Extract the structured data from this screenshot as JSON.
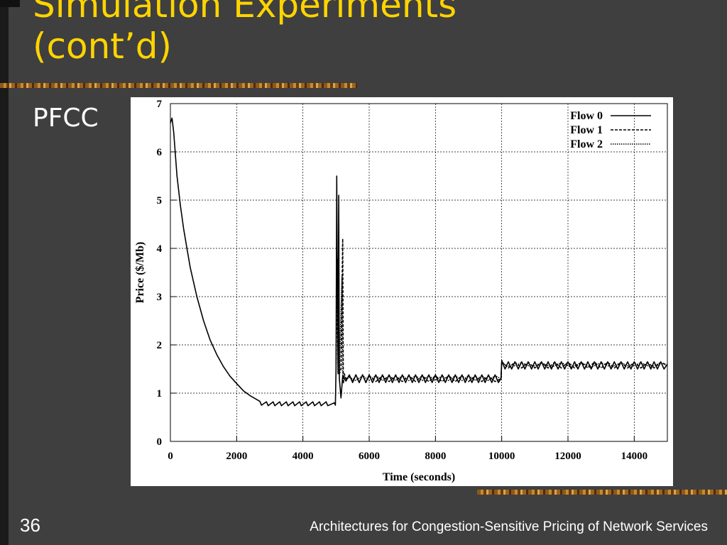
{
  "slide": {
    "title_line1": "Simulation Experiments",
    "title_line2": "(cont’d)",
    "subtitle": "PFCC",
    "slide_number": "36",
    "footer": "Architectures for Congestion-Sensitive Pricing of Network Services"
  },
  "colors": {
    "background": "#3f3f3f",
    "title": "#ffd400",
    "text": "#ffffff"
  },
  "chart_data": {
    "type": "line",
    "xlabel": "Time (seconds)",
    "ylabel": "Price ($/Mb)",
    "xlim": [
      0,
      15000
    ],
    "ylim": [
      0,
      7
    ],
    "xticks": [
      0,
      2000,
      4000,
      6000,
      8000,
      10000,
      12000,
      14000
    ],
    "yticks": [
      0,
      1,
      2,
      3,
      4,
      5,
      6,
      7
    ],
    "grid": true,
    "legend_position": "top-right",
    "series": [
      {
        "name": "Flow 0",
        "dash": "solid",
        "x": [
          0,
          50,
          100,
          200,
          300,
          400,
          500,
          600,
          800,
          1000,
          1200,
          1400,
          1600,
          1800,
          2000,
          2200,
          2400,
          2600,
          2700,
          2750,
          2900,
          2950,
          3100,
          3150,
          3300,
          3350,
          3500,
          3550,
          3700,
          3750,
          3900,
          3950,
          4100,
          4150,
          4300,
          4350,
          4500,
          4550,
          4700,
          4750,
          4950,
          4980,
          5000,
          5020,
          5040,
          5060,
          5080,
          5100,
          5150,
          5200,
          5300,
          5400,
          5500,
          5600,
          5700,
          5800,
          5900,
          6000,
          6100,
          6200,
          6300,
          6400,
          6500,
          6600,
          6700,
          6800,
          6900,
          7000,
          7100,
          7200,
          7300,
          7400,
          7500,
          7600,
          7700,
          7800,
          7900,
          8000,
          8100,
          8200,
          8300,
          8400,
          8500,
          8600,
          8700,
          8800,
          8900,
          9000,
          9100,
          9200,
          9300,
          9400,
          9500,
          9600,
          9700,
          9800,
          9900,
          9980,
          10000,
          10100,
          10200,
          10300,
          10400,
          10500,
          10600,
          10700,
          10800,
          10900,
          11000,
          11100,
          11200,
          11300,
          11400,
          11500,
          11600,
          11700,
          11800,
          11900,
          12000,
          12100,
          12200,
          12300,
          12400,
          12500,
          12600,
          12700,
          12800,
          12900,
          13000,
          13100,
          13200,
          13300,
          13400,
          13500,
          13600,
          13700,
          13800,
          13900,
          14000,
          14100,
          14200,
          14300,
          14400,
          14500,
          14600,
          14700,
          14800,
          14900,
          15000
        ],
        "y": [
          6.6,
          6.7,
          6.4,
          5.5,
          4.9,
          4.4,
          4.0,
          3.6,
          3.0,
          2.5,
          2.1,
          1.8,
          1.55,
          1.35,
          1.2,
          1.05,
          0.95,
          0.87,
          0.83,
          0.75,
          0.82,
          0.74,
          0.82,
          0.74,
          0.82,
          0.74,
          0.82,
          0.74,
          0.82,
          0.74,
          0.82,
          0.74,
          0.82,
          0.74,
          0.82,
          0.74,
          0.82,
          0.74,
          0.82,
          0.74,
          0.8,
          0.75,
          1.5,
          5.5,
          3.2,
          1.4,
          5.1,
          1.3,
          0.9,
          1.35,
          1.25,
          1.38,
          1.22,
          1.38,
          1.22,
          1.38,
          1.22,
          1.38,
          1.22,
          1.38,
          1.22,
          1.38,
          1.22,
          1.38,
          1.22,
          1.38,
          1.22,
          1.38,
          1.22,
          1.38,
          1.22,
          1.38,
          1.22,
          1.38,
          1.22,
          1.38,
          1.22,
          1.38,
          1.22,
          1.38,
          1.22,
          1.38,
          1.22,
          1.38,
          1.22,
          1.38,
          1.22,
          1.38,
          1.22,
          1.38,
          1.22,
          1.38,
          1.22,
          1.38,
          1.22,
          1.38,
          1.22,
          1.3,
          1.68,
          1.5,
          1.65,
          1.5,
          1.65,
          1.5,
          1.65,
          1.5,
          1.65,
          1.5,
          1.65,
          1.5,
          1.65,
          1.5,
          1.65,
          1.5,
          1.65,
          1.5,
          1.65,
          1.5,
          1.65,
          1.5,
          1.65,
          1.5,
          1.65,
          1.5,
          1.65,
          1.5,
          1.65,
          1.5,
          1.65,
          1.5,
          1.65,
          1.5,
          1.65,
          1.5,
          1.65,
          1.5,
          1.65,
          1.5,
          1.65,
          1.5,
          1.65,
          1.5,
          1.65,
          1.5,
          1.65,
          1.5,
          1.65,
          1.5,
          1.6
        ]
      },
      {
        "name": "Flow 1",
        "dash": "dashed",
        "x": [
          5000,
          5050,
          5100,
          5150,
          5200,
          5220,
          5250,
          5300,
          5400,
          5500,
          5600,
          5700,
          5800,
          5900,
          6000,
          6200,
          6400,
          6600,
          6800,
          7000,
          7200,
          7400,
          7600,
          7800,
          8000,
          8200,
          8400,
          8600,
          8800,
          9000,
          9200,
          9400,
          9600,
          9800,
          9980,
          10000,
          10200,
          10400,
          10600,
          10800,
          11000,
          11200,
          11400,
          11600,
          11800,
          12000,
          12200,
          12400,
          12600,
          12800,
          13000,
          13200,
          13400,
          13600,
          13800,
          14000,
          14200,
          14400,
          14600,
          14800,
          15000
        ],
        "y": [
          1.6,
          3.8,
          1.4,
          1.5,
          4.2,
          1.2,
          1.4,
          1.3,
          1.35,
          1.25,
          1.38,
          1.22,
          1.38,
          1.22,
          1.36,
          1.24,
          1.36,
          1.24,
          1.36,
          1.24,
          1.36,
          1.24,
          1.36,
          1.24,
          1.36,
          1.24,
          1.36,
          1.24,
          1.36,
          1.24,
          1.36,
          1.24,
          1.36,
          1.24,
          1.3,
          1.65,
          1.52,
          1.64,
          1.52,
          1.64,
          1.52,
          1.64,
          1.52,
          1.64,
          1.52,
          1.64,
          1.52,
          1.64,
          1.52,
          1.64,
          1.52,
          1.64,
          1.52,
          1.64,
          1.52,
          1.64,
          1.52,
          1.64,
          1.52,
          1.64,
          1.58
        ]
      },
      {
        "name": "Flow 2",
        "dash": "dotted",
        "x": [
          5100,
          5150,
          5180,
          5200,
          5250,
          5300,
          5400,
          5600,
          5800,
          6000,
          6200,
          6400,
          6600,
          6800,
          7000,
          7200,
          7400,
          7600,
          7800,
          8000,
          8200,
          8400,
          8600,
          8800,
          9000,
          9200,
          9400,
          9600,
          9800,
          9980,
          10000,
          10300,
          10600,
          10900,
          11200,
          11500,
          11800,
          12100,
          12400,
          12700,
          13000,
          13300,
          13600,
          13900,
          14200,
          14500,
          14800,
          15000
        ],
        "y": [
          1.4,
          2.7,
          3.4,
          1.3,
          1.35,
          1.28,
          1.33,
          1.26,
          1.36,
          1.26,
          1.36,
          1.26,
          1.36,
          1.26,
          1.36,
          1.26,
          1.36,
          1.26,
          1.36,
          1.26,
          1.36,
          1.26,
          1.36,
          1.26,
          1.36,
          1.26,
          1.36,
          1.26,
          1.36,
          1.3,
          1.62,
          1.54,
          1.63,
          1.54,
          1.63,
          1.54,
          1.63,
          1.54,
          1.63,
          1.54,
          1.63,
          1.54,
          1.63,
          1.54,
          1.63,
          1.54,
          1.63,
          1.57
        ]
      }
    ]
  }
}
